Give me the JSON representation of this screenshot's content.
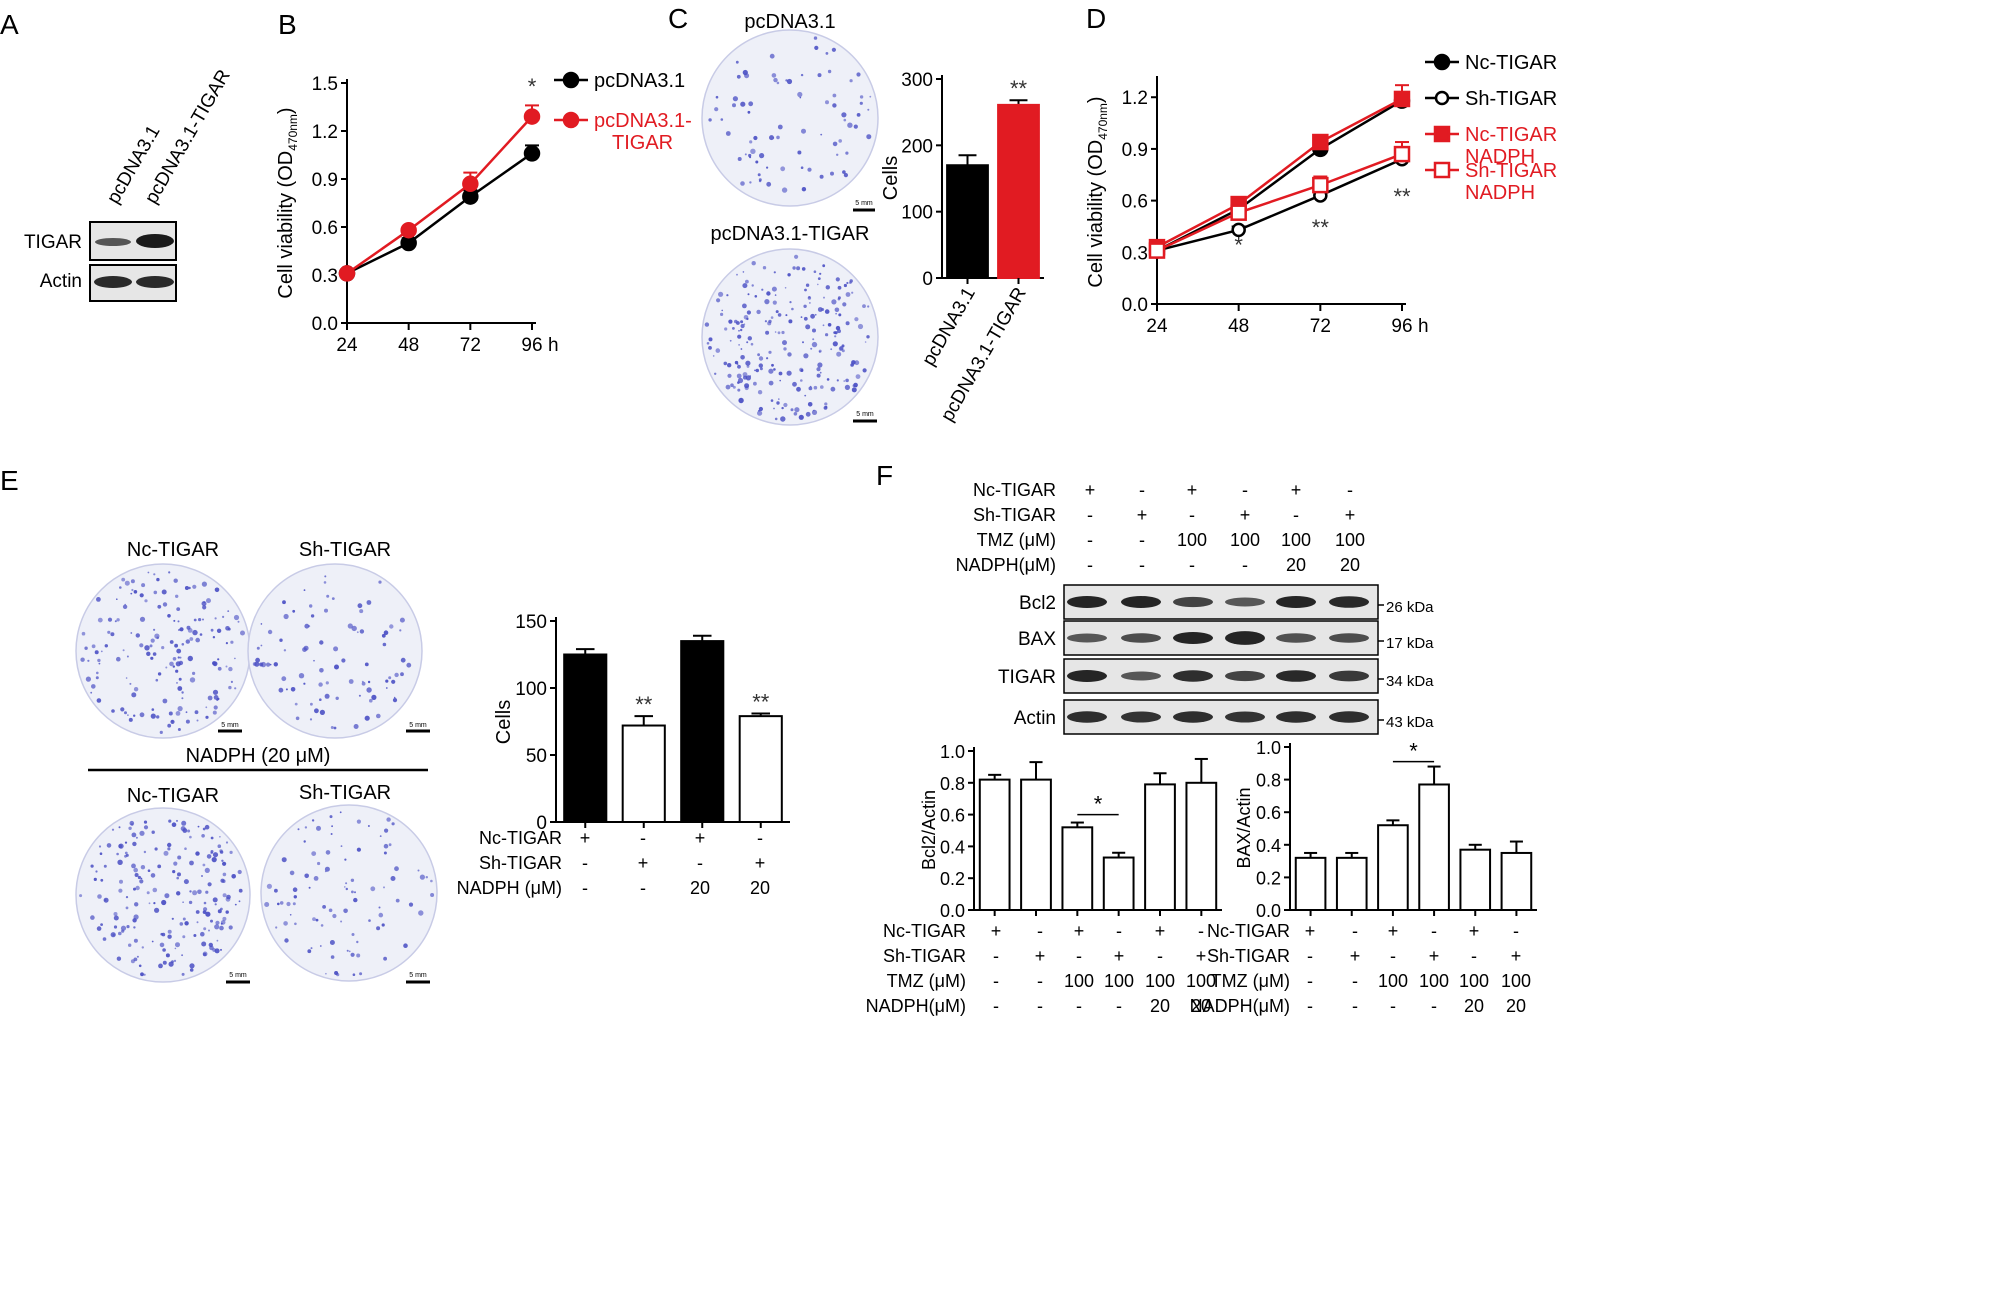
{
  "colors": {
    "black": "#000000",
    "red": "#e11b22",
    "plate_bg": "#eef0f8",
    "plate_dot": "#4a4fc4",
    "blot_bg": "#e6e6e6",
    "blot_band": "#1a1a1a"
  },
  "panel_labels": {
    "a": "A",
    "b": "B",
    "c": "C",
    "d": "D",
    "e": "E",
    "f": "F"
  },
  "panel_a": {
    "lanes": [
      "pcDNA3.1",
      "pcDNA3.1-TIGAR"
    ],
    "rows": [
      "TIGAR",
      "Actin"
    ]
  },
  "scale_bar": "5 mm",
  "units": {
    "hour": "h"
  },
  "panel_c_plates": {
    "top": "pcDNA3.1",
    "bottom": "pcDNA3.1-TIGAR"
  },
  "panel_e_plates": {
    "c1": "Nc-TIGAR",
    "c2": "Sh-TIGAR",
    "nadph_label": "NADPH (20 μM)"
  },
  "panel_f_blot": {
    "rows": [
      "Bcl2",
      "BAX",
      "TIGAR",
      "Actin"
    ],
    "kda": [
      "26 kDa",
      "17 kDa",
      "34 kDa",
      "43 kDa"
    ]
  },
  "condition_tables": {
    "b4": {
      "labels": [
        "Nc-TIGAR",
        "Sh-TIGAR",
        "NADPH (μM)"
      ],
      "cells": [
        [
          "+",
          "-",
          "+",
          "-"
        ],
        [
          "-",
          "+",
          "-",
          "+"
        ],
        [
          "-",
          "-",
          "20",
          "20"
        ]
      ]
    },
    "f6": {
      "labels": [
        "Nc-TIGAR",
        "Sh-TIGAR",
        "TMZ (μM)",
        "NADPH(μM)"
      ],
      "cells": [
        [
          "+",
          "-",
          "+",
          "-",
          "+",
          "-"
        ],
        [
          "-",
          "+",
          "-",
          "+",
          "-",
          "+"
        ],
        [
          "-",
          "-",
          "100",
          "100",
          "100",
          "100"
        ],
        [
          "-",
          "-",
          "-",
          "-",
          "20",
          "20"
        ]
      ]
    }
  },
  "chart_data": [
    {
      "id": "B",
      "type": "line",
      "x": [
        24,
        48,
        72,
        96
      ],
      "xticks": [
        "24",
        "48",
        "72",
        "96"
      ],
      "xunit": "h",
      "ylabel": "Cell viability (OD470nm)",
      "ylim": [
        0,
        1.5
      ],
      "yticks": [
        "0.0",
        "0.3",
        "0.6",
        "0.9",
        "1.2",
        "1.5"
      ],
      "series": [
        {
          "name": "pcDNA3.1",
          "color": "#000000",
          "marker": "filled-circle",
          "values": [
            0.31,
            0.5,
            0.79,
            1.06
          ],
          "errors": [
            0.01,
            0.03,
            0.04,
            0.05
          ]
        },
        {
          "name": "pcDNA3.1-TIGAR",
          "color": "#e11b22",
          "marker": "filled-circle",
          "values": [
            0.31,
            0.58,
            0.87,
            1.29
          ],
          "errors": [
            0.01,
            0.02,
            0.07,
            0.07
          ]
        }
      ],
      "annotations": [
        {
          "x": 96,
          "y": 1.43,
          "text": "*"
        }
      ],
      "legend": "right"
    },
    {
      "id": "C",
      "type": "bar",
      "categories": [
        "pcDNA3.1",
        "pcDNA3.1-TIGAR"
      ],
      "values": [
        170,
        261
      ],
      "errors": [
        15,
        7
      ],
      "colors": [
        "#000000",
        "#e11b22"
      ],
      "ylabel": "Cells",
      "ylim": [
        0,
        300
      ],
      "yticks": [
        "0",
        "100",
        "200",
        "300"
      ],
      "annotations": [
        {
          "index": 1,
          "text": "**"
        }
      ]
    },
    {
      "id": "D",
      "type": "line",
      "x": [
        24,
        48,
        72,
        96
      ],
      "xticks": [
        "24",
        "48",
        "72",
        "96"
      ],
      "xunit": "h",
      "ylabel": "Cell viability (OD470nm)",
      "ylim": [
        0,
        1.3
      ],
      "yticks": [
        "0.0",
        "0.3",
        "0.6",
        "0.9",
        "1.2"
      ],
      "series": [
        {
          "name": "Nc-TIGAR",
          "color": "#000000",
          "marker": "filled-circle",
          "values": [
            0.31,
            0.55,
            0.9,
            1.18
          ],
          "errors": [
            0.01,
            0.02,
            0.04,
            0.05
          ]
        },
        {
          "name": "Sh-TIGAR",
          "color": "#000000",
          "marker": "open-circle",
          "values": [
            0.31,
            0.43,
            0.63,
            0.84
          ],
          "errors": [
            0.01,
            0.02,
            0.1,
            0.05
          ]
        },
        {
          "name": "Nc-TIGAR NADPH",
          "color": "#e11b22",
          "marker": "filled-square",
          "values": [
            0.33,
            0.58,
            0.94,
            1.19
          ],
          "errors": [
            0.01,
            0.02,
            0.03,
            0.08
          ]
        },
        {
          "name": "Sh-TIGAR NADPH",
          "color": "#e11b22",
          "marker": "open-square",
          "values": [
            0.31,
            0.53,
            0.69,
            0.87
          ],
          "errors": [
            0.01,
            0.02,
            0.05,
            0.07
          ]
        }
      ],
      "annotations": [
        {
          "x": 48,
          "y": 0.3,
          "text": "*"
        },
        {
          "x": 72,
          "y": 0.4,
          "text": "**"
        },
        {
          "x": 96,
          "y": 0.58,
          "text": "**"
        }
      ],
      "legend": "right"
    },
    {
      "id": "E",
      "type": "bar",
      "values": [
        125,
        72,
        135,
        79
      ],
      "errors": [
        4,
        7,
        4,
        2
      ],
      "fills": [
        "#000000",
        "#ffffff",
        "#000000",
        "#ffffff"
      ],
      "ylabel": "Cells",
      "ylim": [
        0,
        150
      ],
      "yticks": [
        "0",
        "50",
        "100",
        "150"
      ],
      "annotations": [
        {
          "index": 1,
          "text": "**"
        },
        {
          "index": 3,
          "text": "**"
        }
      ]
    },
    {
      "id": "F1",
      "type": "bar",
      "values": [
        0.82,
        0.82,
        0.52,
        0.33,
        0.79,
        0.8
      ],
      "errors": [
        0.03,
        0.11,
        0.03,
        0.03,
        0.07,
        0.15
      ],
      "ylabel": "Bcl2/Actin",
      "ylim": [
        0,
        1.0
      ],
      "yticks": [
        "0.0",
        "0.2",
        "0.4",
        "0.6",
        "0.8",
        "1.0"
      ],
      "bracket": {
        "from": 2,
        "to": 3,
        "y": 0.6,
        "text": "*"
      }
    },
    {
      "id": "F2",
      "type": "bar",
      "values": [
        0.32,
        0.32,
        0.52,
        0.77,
        0.37,
        0.35
      ],
      "errors": [
        0.03,
        0.03,
        0.03,
        0.11,
        0.03,
        0.07
      ],
      "ylabel": "BAX/Actin",
      "ylim": [
        0,
        1.0
      ],
      "yticks": [
        "0.0",
        "0.2",
        "0.4",
        "0.6",
        "0.8",
        "1.0"
      ],
      "bracket": {
        "from": 2,
        "to": 3,
        "y": 0.91,
        "text": "*"
      }
    }
  ]
}
